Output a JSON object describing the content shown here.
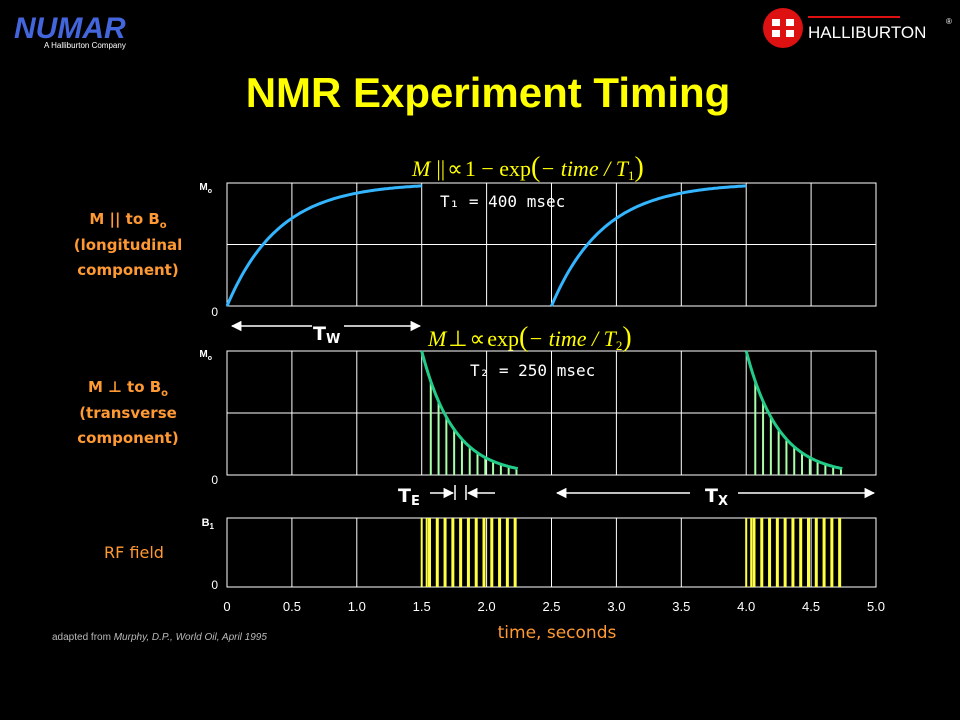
{
  "logo_left": {
    "wordmark": "NUMAR",
    "tagline": "A Halliburton Company"
  },
  "logo_right": {
    "wordmark": "HALLIBURTON",
    "reg": "®"
  },
  "title": "NMR Experiment Timing",
  "colors": {
    "background": "#000000",
    "title": "#FFFF00",
    "label": "#FF9933",
    "grid": "#FFFFFF",
    "t1_curve": "#33B5FF",
    "t2_curve": "#22CC88",
    "t2_stems": "#AAFFAA",
    "rf_pulses": "#FFFF44",
    "arrows": "#FFFFFF",
    "footnote": "#BBBBBB"
  },
  "panel_long": {
    "label_line1": "M || to B",
    "label_sub": "o",
    "label_line2": "(longitudinal",
    "label_line3": "component)",
    "ytop": "M",
    "ytop_sub": "o",
    "ybottom": "0",
    "formula": {
      "lhs": "M",
      "rel": "||",
      "prop": "∝",
      "body": "1 − exp",
      "arg": "− time / T",
      "arg_sub": "1"
    },
    "param": "T₁  = 400 msec"
  },
  "tw": {
    "label": "T",
    "label_sub": "W"
  },
  "panel_trans": {
    "label_line1": "M ⊥ to B",
    "label_sub": "o",
    "label_line2": "(transverse",
    "label_line3": "component)",
    "ytop": "M",
    "ytop_sub": "o",
    "ybottom": "0",
    "formula": {
      "lhs": "M",
      "rel": "⊥",
      "prop": "∝",
      "body": "exp",
      "arg": "− time / T",
      "arg_sub": "2"
    },
    "param": "T₂ =  250 msec"
  },
  "te": {
    "label": "T",
    "label_sub": "E"
  },
  "tx": {
    "label": "T",
    "label_sub": "X"
  },
  "panel_rf": {
    "label": "RF field",
    "ytop": "B",
    "ytop_sub": "1",
    "ybottom": "0"
  },
  "x_ticks": [
    "0",
    "0.5",
    "1.0",
    "1.5",
    "2.0",
    "2.5",
    "3.0",
    "3.5",
    "4.0",
    "4.5",
    "5.0"
  ],
  "x_axis_label": "time, seconds",
  "footnote": {
    "prefix": "adapted from ",
    "source": "Murphy, D.P., World Oil, April 1995"
  },
  "timing": {
    "t_start": 0,
    "t_end": 5.0,
    "wait_time_s": 1.5,
    "echo_spacing_s": 0.06,
    "echoes_per_train": 12,
    "t1_ms": 400,
    "t2_ms": 250,
    "cycle_starts_s": [
      0,
      2.5
    ]
  }
}
